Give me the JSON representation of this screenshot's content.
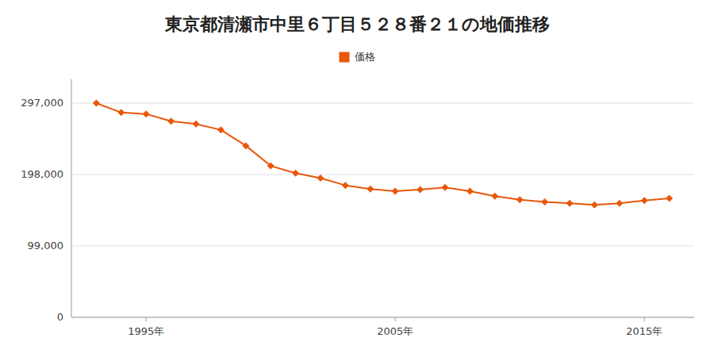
{
  "chart_data": {
    "type": "line",
    "title": "東京都清瀬市中里６丁目５２８番２１の地価推移",
    "x": [
      1993,
      1994,
      1995,
      1996,
      1997,
      1998,
      1999,
      2000,
      2001,
      2002,
      2003,
      2004,
      2005,
      2006,
      2007,
      2008,
      2009,
      2010,
      2011,
      2012,
      2013,
      2014,
      2015,
      2016
    ],
    "series": [
      {
        "name": "価格",
        "color": "#e8570a",
        "marker": "diamond",
        "values": [
          297000,
          284000,
          282000,
          272000,
          268000,
          260000,
          238000,
          210000,
          200000,
          193000,
          183000,
          178000,
          175000,
          177000,
          180000,
          175000,
          168000,
          163000,
          160000,
          158000,
          156000,
          158000,
          162000,
          165000
        ]
      }
    ],
    "xlim": [
      1992,
      2017
    ],
    "xticks": [
      {
        "value": 1995,
        "label": "1995年"
      },
      {
        "value": 2005,
        "label": "2005年"
      },
      {
        "value": 2015,
        "label": "2015年"
      }
    ],
    "ylim": [
      0,
      330000
    ],
    "yticks": [
      0,
      {
        "value": 99000,
        "label": "99,000"
      },
      {
        "value": 198000,
        "label": "198,000"
      },
      {
        "value": 297000,
        "label": "297,000"
      }
    ],
    "grid": true,
    "legend": "top"
  }
}
